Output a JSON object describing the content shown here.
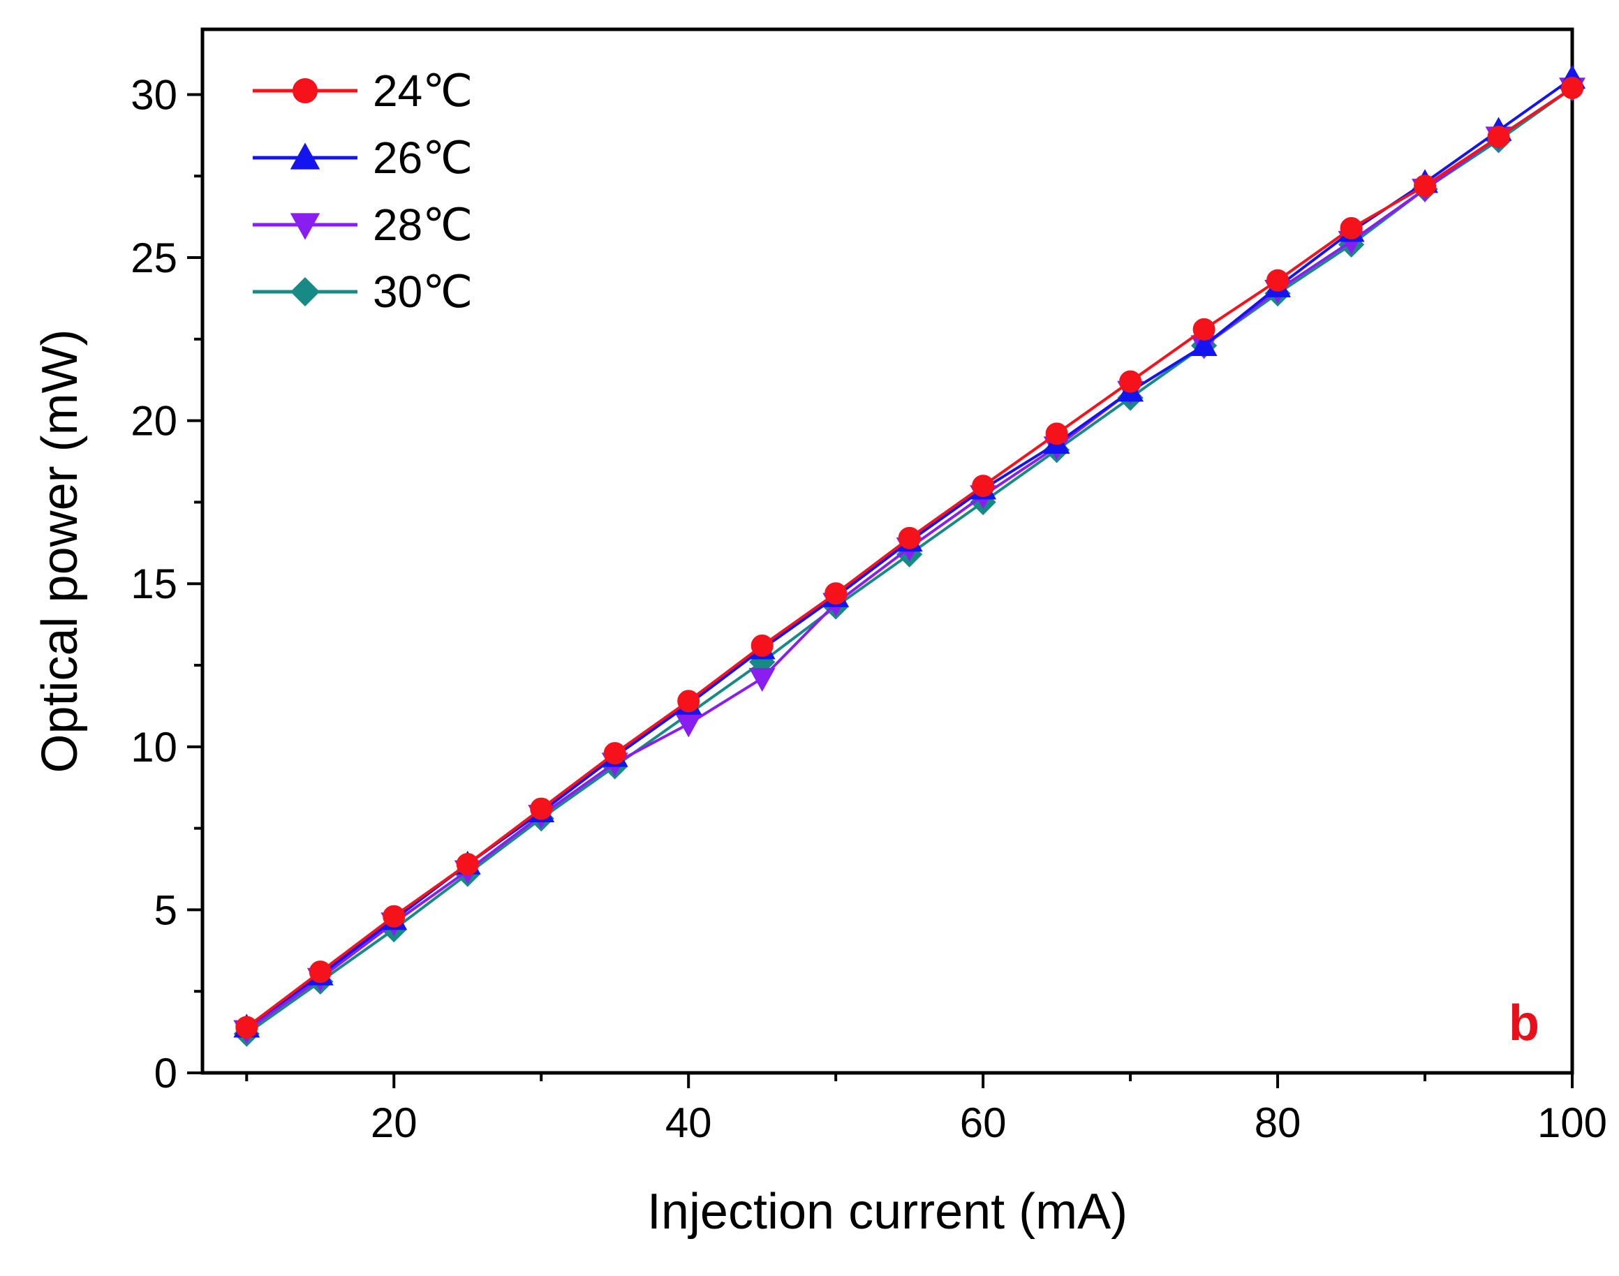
{
  "chart_data": {
    "type": "line",
    "title": "",
    "xlabel": "Injection current (mA)",
    "ylabel": "Optical power (mW)",
    "xlim": [
      7,
      100
    ],
    "ylim": [
      0,
      32
    ],
    "xticks": [
      20,
      40,
      60,
      80,
      100
    ],
    "yticks": [
      0,
      5,
      10,
      15,
      20,
      25,
      30
    ],
    "x": [
      10,
      15,
      20,
      25,
      30,
      35,
      40,
      45,
      50,
      55,
      60,
      65,
      70,
      75,
      80,
      85,
      90,
      95,
      100
    ],
    "legend_position": "top-left",
    "panel_label": "b",
    "panel_label_color": "#e8101a",
    "series": [
      {
        "name": "24℃",
        "color": "#f5121b",
        "marker": "circle",
        "values": [
          1.4,
          3.1,
          4.8,
          6.4,
          8.1,
          9.8,
          11.4,
          13.1,
          14.7,
          16.4,
          18.0,
          19.6,
          21.2,
          22.8,
          24.3,
          25.9,
          27.2,
          28.7,
          30.2
        ]
      },
      {
        "name": "26℃",
        "color": "#1414f0",
        "marker": "triangle-up",
        "values": [
          1.4,
          3.0,
          4.7,
          6.4,
          8.0,
          9.7,
          11.3,
          13.0,
          14.6,
          16.3,
          17.9,
          19.3,
          20.9,
          22.3,
          24.1,
          25.8,
          27.3,
          28.9,
          30.5
        ]
      },
      {
        "name": "28℃",
        "color": "#8a1ef0",
        "marker": "triangle-down",
        "values": [
          1.3,
          2.9,
          4.6,
          6.2,
          7.9,
          9.5,
          10.7,
          12.1,
          14.4,
          16.1,
          17.7,
          19.2,
          20.9,
          22.3,
          24.0,
          25.5,
          27.1,
          28.7,
          30.2
        ]
      },
      {
        "name": "30℃",
        "color": "#188a86",
        "marker": "diamond",
        "values": [
          1.2,
          2.8,
          4.4,
          6.1,
          7.8,
          9.4,
          11.0,
          12.6,
          14.3,
          15.9,
          17.5,
          19.1,
          20.7,
          22.3,
          23.9,
          25.4,
          27.1,
          28.6,
          30.2
        ]
      }
    ]
  }
}
